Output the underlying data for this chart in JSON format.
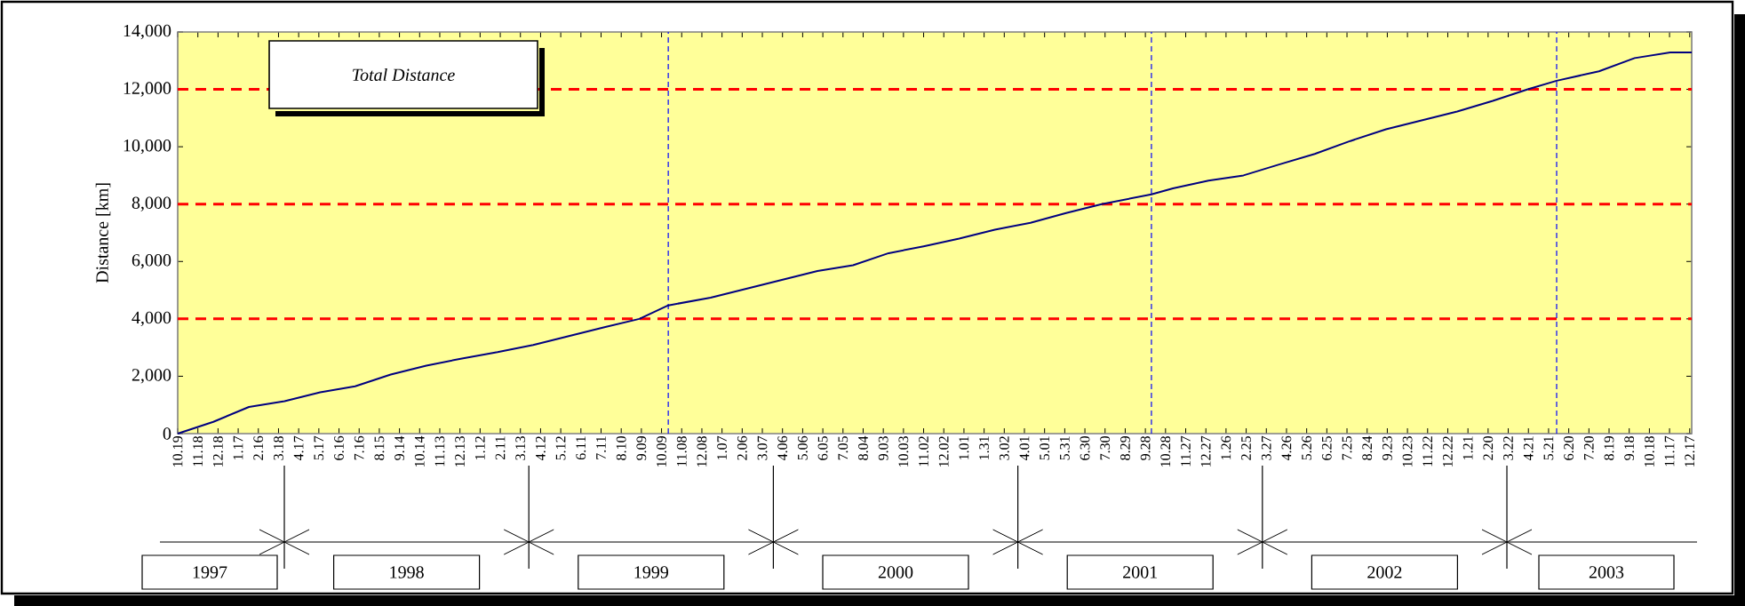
{
  "chart_data": {
    "type": "line",
    "title": "Total Distance",
    "ylabel": "Distance  [km]",
    "xlim": [
      "1997-10-19",
      "2003-12-20"
    ],
    "ylim": [
      0,
      14000
    ],
    "yticks": [
      0,
      {
        "value": 2000,
        "label": "2,000"
      },
      {
        "value": 4000,
        "label": "4,000"
      },
      {
        "value": 6000,
        "label": "6,000"
      },
      {
        "value": 8000,
        "label": "8,000"
      },
      {
        "value": 10000,
        "label": "10,000"
      },
      {
        "value": 12000,
        "label": "12,000"
      },
      {
        "value": 14000,
        "label": "14,000"
      }
    ],
    "xticks": [
      {
        "value": "1997-10-19",
        "label": "10.19"
      },
      {
        "value": "1997-11-18",
        "label": "11.18"
      },
      {
        "value": "1997-12-18",
        "label": "12.18"
      },
      {
        "value": "1998-01-17",
        "label": "1.17"
      },
      {
        "value": "1998-02-16",
        "label": "2.16"
      },
      {
        "value": "1998-03-18",
        "label": "3.18"
      },
      {
        "value": "1998-04-17",
        "label": "4.17"
      },
      {
        "value": "1998-05-17",
        "label": "5.17"
      },
      {
        "value": "1998-06-16",
        "label": "6.16"
      },
      {
        "value": "1998-07-16",
        "label": "7.16"
      },
      {
        "value": "1998-08-15",
        "label": "8.15"
      },
      {
        "value": "1998-09-14",
        "label": "9.14"
      },
      {
        "value": "1998-10-14",
        "label": "10.14"
      },
      {
        "value": "1998-11-13",
        "label": "11.13"
      },
      {
        "value": "1998-12-13",
        "label": "12.13"
      },
      {
        "value": "1999-01-12",
        "label": "1.12"
      },
      {
        "value": "1999-02-11",
        "label": "2.11"
      },
      {
        "value": "1999-03-13",
        "label": "3.13"
      },
      {
        "value": "1999-04-12",
        "label": "4.12"
      },
      {
        "value": "1999-05-12",
        "label": "5.12"
      },
      {
        "value": "1999-06-11",
        "label": "6.11"
      },
      {
        "value": "1999-07-11",
        "label": "7.11"
      },
      {
        "value": "1999-08-10",
        "label": "8.10"
      },
      {
        "value": "1999-09-09",
        "label": "9.09"
      },
      {
        "value": "1999-10-09",
        "label": "10.09"
      },
      {
        "value": "1999-11-08",
        "label": "11.08"
      },
      {
        "value": "1999-12-08",
        "label": "12.08"
      },
      {
        "value": "2000-01-07",
        "label": "1.07"
      },
      {
        "value": "2000-02-06",
        "label": "2.06"
      },
      {
        "value": "2000-03-07",
        "label": "3.07"
      },
      {
        "value": "2000-04-06",
        "label": "4.06"
      },
      {
        "value": "2000-05-06",
        "label": "5.06"
      },
      {
        "value": "2000-06-05",
        "label": "6.05"
      },
      {
        "value": "2000-07-05",
        "label": "7.05"
      },
      {
        "value": "2000-08-04",
        "label": "8.04"
      },
      {
        "value": "2000-09-03",
        "label": "9.03"
      },
      {
        "value": "2000-10-03",
        "label": "10.03"
      },
      {
        "value": "2000-11-02",
        "label": "11.02"
      },
      {
        "value": "2000-12-02",
        "label": "12.02"
      },
      {
        "value": "2001-01-01",
        "label": "1.01"
      },
      {
        "value": "2001-01-31",
        "label": "1.31"
      },
      {
        "value": "2001-03-02",
        "label": "3.02"
      },
      {
        "value": "2001-04-01",
        "label": "4.01"
      },
      {
        "value": "2001-05-01",
        "label": "5.01"
      },
      {
        "value": "2001-05-31",
        "label": "5.31"
      },
      {
        "value": "2001-06-30",
        "label": "6.30"
      },
      {
        "value": "2001-07-30",
        "label": "7.30"
      },
      {
        "value": "2001-08-29",
        "label": "8.29"
      },
      {
        "value": "2001-09-28",
        "label": "9.28"
      },
      {
        "value": "2001-10-28",
        "label": "10.28"
      },
      {
        "value": "2001-11-27",
        "label": "11.27"
      },
      {
        "value": "2001-12-27",
        "label": "12.27"
      },
      {
        "value": "2002-01-26",
        "label": "1.26"
      },
      {
        "value": "2002-02-25",
        "label": "2.25"
      },
      {
        "value": "2002-03-27",
        "label": "3.27"
      },
      {
        "value": "2002-04-26",
        "label": "4.26"
      },
      {
        "value": "2002-05-26",
        "label": "5.26"
      },
      {
        "value": "2002-06-25",
        "label": "6.25"
      },
      {
        "value": "2002-07-25",
        "label": "7.25"
      },
      {
        "value": "2002-08-24",
        "label": "8.24"
      },
      {
        "value": "2002-09-23",
        "label": "9.23"
      },
      {
        "value": "2002-10-23",
        "label": "10.23"
      },
      {
        "value": "2002-11-22",
        "label": "11.22"
      },
      {
        "value": "2002-12-22",
        "label": "12.22"
      },
      {
        "value": "2003-01-21",
        "label": "1.21"
      },
      {
        "value": "2003-02-20",
        "label": "2.20"
      },
      {
        "value": "2003-03-22",
        "label": "3.22"
      },
      {
        "value": "2003-04-21",
        "label": "4.21"
      },
      {
        "value": "2003-05-21",
        "label": "5.21"
      },
      {
        "value": "2003-06-20",
        "label": "6.20"
      },
      {
        "value": "2003-07-20",
        "label": "7.20"
      },
      {
        "value": "2003-08-19",
        "label": "8.19"
      },
      {
        "value": "2003-09-18",
        "label": "9.18"
      },
      {
        "value": "2003-10-18",
        "label": "10.18"
      },
      {
        "value": "2003-11-17",
        "label": "11.17"
      },
      {
        "value": "2003-12-17",
        "label": "12.17"
      }
    ],
    "series": [
      {
        "color": "#000080",
        "x": [
          "1997-10-19",
          "1997-12-11",
          "1998-02-02",
          "1998-03-27",
          "1998-05-19",
          "1998-07-10",
          "1998-09-01",
          "1998-10-24",
          "1998-12-16",
          "1999-02-07",
          "1999-04-01",
          "1999-05-24",
          "1999-07-16",
          "1999-09-06",
          "1999-10-19",
          "1999-12-21",
          "2000-02-12",
          "2000-04-05",
          "2000-05-28",
          "2000-07-20",
          "2000-09-11",
          "2000-11-02",
          "2000-12-25",
          "2001-02-16",
          "2001-04-10",
          "2001-06-02",
          "2001-07-25",
          "2001-10-07",
          "2001-11-08",
          "2001-12-31",
          "2002-02-21",
          "2002-04-15",
          "2002-06-07",
          "2002-07-30",
          "2002-09-21",
          "2002-11-13",
          "2003-01-05",
          "2003-02-27",
          "2003-04-20",
          "2003-06-02",
          "2003-08-04",
          "2003-09-26",
          "2003-11-18",
          "2003-12-20"
        ],
        "values": [
          0,
          410,
          930,
          1130,
          1440,
          1650,
          2060,
          2370,
          2620,
          2840,
          3090,
          3400,
          3710,
          4000,
          4470,
          4740,
          5050,
          5360,
          5670,
          5870,
          6290,
          6530,
          6800,
          7110,
          7350,
          7690,
          8000,
          8340,
          8550,
          8820,
          9000,
          9380,
          9750,
          10200,
          10610,
          10920,
          11230,
          11600,
          12000,
          12300,
          12630,
          13090,
          13290,
          13290
        ]
      }
    ],
    "ref_lines": [
      {
        "axis": "y",
        "value": 4000,
        "color": "#ff0000",
        "line_style": "dashed"
      },
      {
        "axis": "y",
        "value": 8000,
        "color": "#ff0000",
        "line_style": "dashed"
      },
      {
        "axis": "y",
        "value": 12000,
        "color": "#ff0000",
        "line_style": "dashed"
      },
      {
        "axis": "x",
        "value": "1999-10-19",
        "color": "#0000ff",
        "line_style": "dashed"
      },
      {
        "axis": "x",
        "value": "2001-10-07",
        "color": "#0000ff",
        "line_style": "dashed"
      },
      {
        "axis": "x",
        "value": "2003-06-02",
        "color": "#0000ff",
        "line_style": "dashed"
      }
    ],
    "annotations": [
      "1997",
      "1998",
      "1999",
      "2000",
      "2001",
      "2002",
      "2003"
    ]
  }
}
